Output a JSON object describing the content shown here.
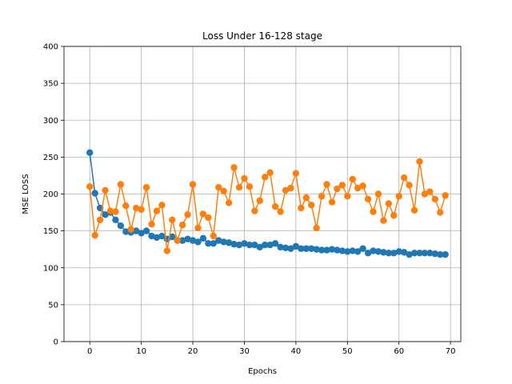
{
  "chart_data": {
    "type": "line",
    "title": "Loss Under 16-128 stage",
    "xlabel": "Epochs",
    "ylabel": "MSE LOSS",
    "xlim": [
      -5,
      72
    ],
    "ylim": [
      0,
      400
    ],
    "xticks": [
      0,
      10,
      20,
      30,
      40,
      50,
      60,
      70
    ],
    "yticks": [
      0,
      50,
      100,
      150,
      200,
      250,
      300,
      350,
      400
    ],
    "grid": true,
    "colors": [
      "#1f77b4",
      "#ff7f0e"
    ],
    "series": [
      {
        "values": [
          256,
          201,
          181,
          172,
          175,
          165,
          157,
          149,
          148,
          150,
          147,
          150,
          143,
          141,
          143,
          139,
          142,
          137,
          137,
          139,
          137,
          135,
          140,
          133,
          133,
          137,
          135,
          134,
          132,
          131,
          133,
          131,
          131,
          128,
          131,
          131,
          133,
          128,
          127,
          126,
          129,
          126,
          126,
          126,
          125,
          124,
          124,
          125,
          124,
          123,
          122,
          123,
          122,
          126,
          120,
          123,
          122,
          121,
          120,
          120,
          122,
          121,
          118,
          120,
          120,
          120,
          120,
          119,
          118,
          118
        ]
      },
      {
        "values": [
          210,
          144,
          165,
          205,
          177,
          176,
          213,
          184,
          152,
          181,
          179,
          209,
          159,
          177,
          185,
          123,
          165,
          137,
          158,
          172,
          213,
          154,
          173,
          168,
          143,
          209,
          204,
          188,
          236,
          209,
          221,
          210,
          177,
          191,
          223,
          229,
          183,
          176,
          205,
          208,
          228,
          181,
          195,
          185,
          154,
          197,
          213,
          189,
          207,
          212,
          197,
          220,
          208,
          211,
          193,
          176,
          200,
          164,
          187,
          171,
          197,
          222,
          212,
          178,
          244,
          200,
          203,
          193,
          175,
          198
        ]
      }
    ]
  }
}
